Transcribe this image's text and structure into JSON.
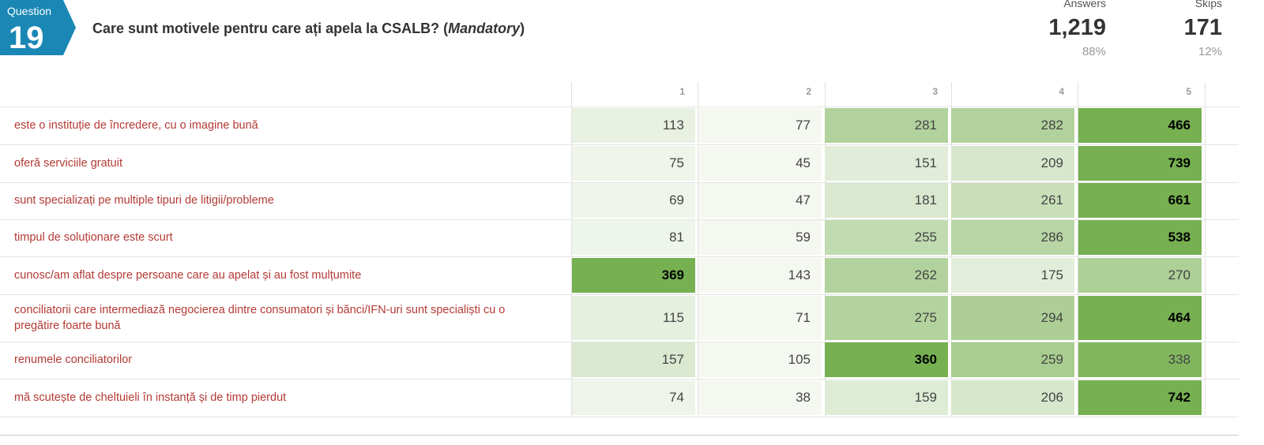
{
  "question": {
    "label": "Question",
    "number": "19",
    "title": "Care sunt motivele pentru care ați apela la CSALB? (",
    "title_italic": "Mandatory",
    "title_end": ")"
  },
  "stats": {
    "answers_label": "Answers",
    "answers_value": "1,219",
    "answers_pct": "88%",
    "skips_label": "Skips",
    "skips_value": "171",
    "skips_pct": "12%"
  },
  "colors": {
    "badge": "#1a87b5",
    "row_label": "#b33a35",
    "cell_max": "#76b051"
  },
  "table": {
    "columns": [
      "1",
      "2",
      "3",
      "4",
      "5"
    ],
    "rows": [
      {
        "label": "este o instituție de încredere, cu o imagine bună",
        "values": [
          "113",
          "77",
          "281",
          "282",
          "466"
        ]
      },
      {
        "label": "oferă serviciile gratuit",
        "values": [
          "75",
          "45",
          "151",
          "209",
          "739"
        ]
      },
      {
        "label": "sunt specializați pe multiple tipuri de litigii/probleme",
        "values": [
          "69",
          "47",
          "181",
          "261",
          "661"
        ]
      },
      {
        "label": "timpul de soluționare este scurt",
        "values": [
          "81",
          "59",
          "255",
          "286",
          "538"
        ]
      },
      {
        "label": "cunosc/am aflat despre persoane care au apelat și au fost mulțumite",
        "values": [
          "369",
          "143",
          "262",
          "175",
          "270"
        ]
      },
      {
        "label": "conciliatorii care intermediază negocierea dintre consumatori și bănci/IFN-uri sunt specialiști cu o pregătire foarte bună",
        "values": [
          "115",
          "71",
          "275",
          "294",
          "464"
        ]
      },
      {
        "label": "renumele conciliatorilor",
        "values": [
          "157",
          "105",
          "360",
          "259",
          "338"
        ]
      },
      {
        "label": "mă scutește de cheltuieli în instanță și de timp pierdut",
        "values": [
          "74",
          "38",
          "159",
          "206",
          "742"
        ]
      }
    ]
  }
}
